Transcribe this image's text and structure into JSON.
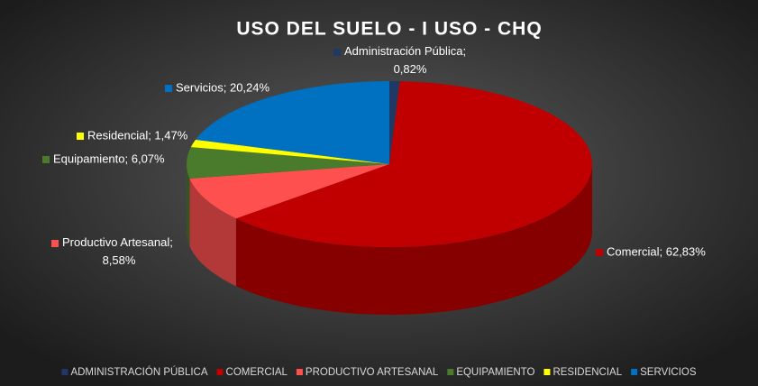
{
  "chart_data": {
    "type": "pie",
    "style": "3d",
    "title": "USO DEL SUELO - I USO - CHQ",
    "categories": [
      "ADMINISTRACIÓN PÚBLICA",
      "COMERCIAL",
      "PRODUCTIVO ARTESANAL",
      "EQUIPAMIENTO",
      "RESIDENCIAL",
      "SERVICIOS"
    ],
    "values": [
      0.82,
      62.83,
      8.58,
      6.07,
      1.47,
      20.24
    ],
    "value_labels": [
      "Administración Pública; 0,82%",
      "Comercial; 62,83%",
      "Productivo Artesanal; 8,58%",
      "Equipamiento; 6,07%",
      "Residencial; 1,47%",
      "Servicios; 20,24%"
    ],
    "colors": [
      "#1f3864",
      "#c00000",
      "#ff5050",
      "#4a7a2c",
      "#ffff00",
      "#0070c0"
    ],
    "legend": "bottom"
  }
}
